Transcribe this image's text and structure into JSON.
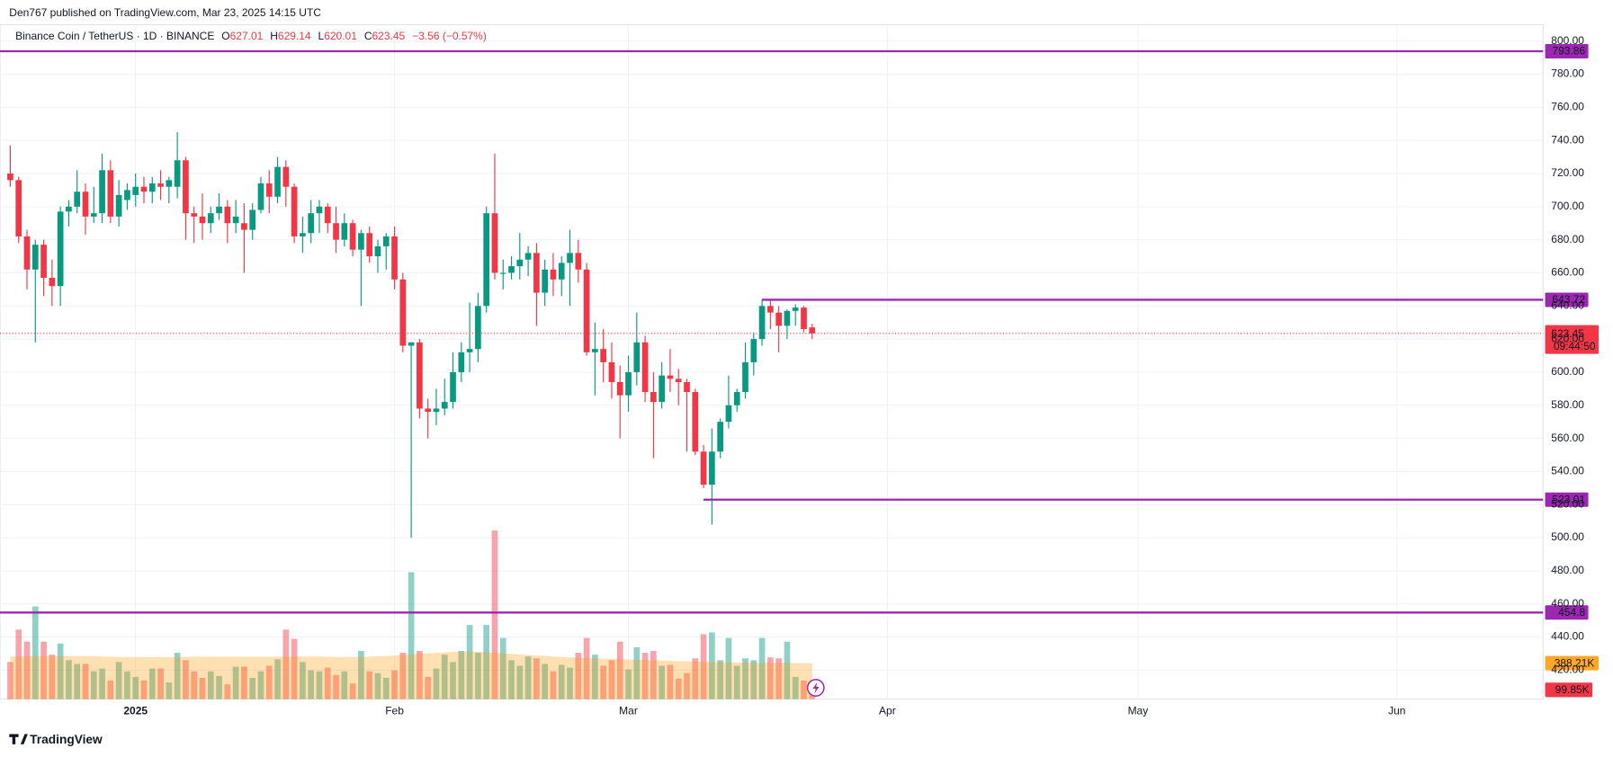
{
  "header": "Den767 published on TradingView.com, Mar 23, 2025 14:15 UTC",
  "footer": "TradingView",
  "chart_data": {
    "type": "candlestick",
    "symbol": "Binance Coin / TetherUS · 1D · BINANCE",
    "ohlc_labels": [
      "O",
      "H",
      "L",
      "C"
    ],
    "change": "−3.56 (−0.57%)",
    "up_color": "#089981",
    "down_color": "#f23645",
    "xlim": [
      -1.23,
      183.5
    ],
    "xticks": [
      {
        "value": 15,
        "label": "2025"
      },
      {
        "value": 46,
        "label": "Feb"
      },
      {
        "value": 74,
        "label": "Mar"
      },
      {
        "value": 105,
        "label": "Apr"
      },
      {
        "value": 135,
        "label": "May"
      },
      {
        "value": 166,
        "label": "Jun"
      }
    ],
    "ylim": [
      402.5,
      809.9
    ],
    "yticks": [
      {
        "value": 420,
        "label": "420.00"
      },
      {
        "value": 440,
        "label": "440.00"
      },
      {
        "value": 460,
        "label": "460.00"
      },
      {
        "value": 480,
        "label": "480.00"
      },
      {
        "value": 500,
        "label": "500.00"
      },
      {
        "value": 520,
        "label": "520.00"
      },
      {
        "value": 540,
        "label": "540.00"
      },
      {
        "value": 560,
        "label": "560.00"
      },
      {
        "value": 580,
        "label": "580.00"
      },
      {
        "value": 600,
        "label": "600.00"
      },
      {
        "value": 620,
        "label": "620.00"
      },
      {
        "value": 640,
        "label": "640.00"
      },
      {
        "value": 660,
        "label": "660.00"
      },
      {
        "value": 680,
        "label": "680.00"
      },
      {
        "value": 700,
        "label": "700.00"
      },
      {
        "value": 720,
        "label": "720.00"
      },
      {
        "value": 740,
        "label": "740.00"
      },
      {
        "value": 760,
        "label": "760.00"
      },
      {
        "value": 780,
        "label": "780.00"
      },
      {
        "value": 800,
        "label": "800.00"
      }
    ],
    "grid": true,
    "open": [
      720,
      716,
      682,
      662,
      677,
      657,
      652,
      697,
      700,
      709,
      694,
      696,
      722,
      694,
      704,
      707,
      712,
      709,
      714,
      712,
      712,
      728,
      696,
      694,
      690,
      696,
      700,
      690,
      690,
      686,
      698,
      714,
      706,
      724,
      712,
      682,
      684,
      696,
      700,
      690,
      680,
      690,
      674,
      684,
      670,
      676,
      682,
      656,
      616,
      618,
      578,
      576,
      578,
      582,
      600,
      612,
      614,
      640,
      696,
      660,
      660,
      664,
      668,
      672,
      648,
      662,
      656,
      666,
      672,
      662,
      612,
      614,
      606,
      594,
      586,
      600,
      618,
      588,
      582,
      598,
      596,
      594,
      588,
      552,
      532,
      552,
      570,
      580,
      588,
      606,
      620,
      640,
      636,
      628,
      637,
      639,
      627.01
    ],
    "high": [
      737,
      718,
      686,
      680,
      680,
      668,
      700,
      704,
      722,
      714,
      712,
      732,
      728,
      716,
      714,
      720,
      718,
      718,
      722,
      718,
      745,
      730,
      700,
      708,
      700,
      708,
      704,
      704,
      702,
      702,
      718,
      722,
      730,
      728,
      714,
      694,
      704,
      704,
      702,
      700,
      696,
      692,
      686,
      688,
      680,
      684,
      688,
      660,
      618,
      620,
      584,
      590,
      596,
      612,
      618,
      642,
      648,
      700,
      732,
      668,
      670,
      684,
      676,
      678,
      668,
      672,
      670,
      686,
      680,
      666,
      630,
      626,
      618,
      604,
      610,
      636,
      622,
      600,
      606,
      614,
      602,
      596,
      590,
      556,
      566,
      572,
      598,
      590,
      618,
      624,
      644,
      644,
      640,
      638,
      641,
      640,
      629.14
    ],
    "low": [
      712,
      678,
      650,
      618,
      646,
      640,
      640,
      688,
      696,
      683,
      690,
      690,
      690,
      688,
      698,
      700,
      702,
      702,
      704,
      702,
      705,
      680,
      678,
      680,
      684,
      692,
      678,
      684,
      660,
      680,
      696,
      696,
      702,
      700,
      678,
      672,
      678,
      684,
      684,
      672,
      676,
      670,
      640,
      666,
      660,
      662,
      650,
      612,
      500,
      572,
      560,
      568,
      574,
      578,
      594,
      600,
      606,
      636,
      656,
      650,
      656,
      656,
      658,
      628,
      640,
      646,
      646,
      640,
      654,
      610,
      586,
      594,
      584,
      560,
      576,
      592,
      582,
      548,
      578,
      588,
      580,
      552,
      550,
      530,
      508,
      548,
      566,
      576,
      584,
      598,
      616,
      626,
      612,
      620,
      628,
      624,
      620.01
    ],
    "close": [
      716,
      682,
      662,
      677,
      657,
      652,
      697,
      700,
      709,
      694,
      696,
      722,
      694,
      707,
      710,
      712,
      709,
      714,
      712,
      716,
      728,
      696,
      694,
      690,
      696,
      700,
      690,
      694,
      686,
      698,
      714,
      706,
      724,
      712,
      682,
      684,
      696,
      700,
      690,
      680,
      690,
      674,
      684,
      670,
      676,
      682,
      656,
      616,
      618,
      578,
      576,
      578,
      582,
      600,
      612,
      614,
      640,
      696,
      660,
      660,
      664,
      668,
      672,
      648,
      662,
      656,
      666,
      672,
      662,
      612,
      614,
      606,
      594,
      586,
      600,
      618,
      588,
      582,
      598,
      596,
      594,
      588,
      552,
      532,
      552,
      570,
      580,
      588,
      606,
      620,
      640,
      636,
      628,
      637,
      639,
      626,
      623.45
    ],
    "countdown": "09:44:50",
    "volume": {
      "values": [
        400,
        750,
        620,
        1000,
        620,
        480,
        600,
        420,
        380,
        380,
        300,
        330,
        200,
        400,
        300,
        240,
        200,
        330,
        330,
        180,
        500,
        420,
        300,
        230,
        300,
        250,
        160,
        350,
        350,
        230,
        300,
        360,
        430,
        750,
        650,
        400,
        310,
        300,
        340,
        260,
        300,
        170,
        520,
        300,
        280,
        230,
        310,
        500,
        1370,
        520,
        240,
        330,
        480,
        400,
        520,
        800,
        500,
        800,
        1820,
        660,
        420,
        360,
        460,
        440,
        380,
        300,
        370,
        340,
        500,
        660,
        480,
        360,
        420,
        620,
        320,
        560,
        500,
        520,
        360,
        370,
        220,
        280,
        440,
        700,
        720,
        420,
        660,
        360,
        440,
        420,
        660,
        450,
        440,
        620,
        240,
        200,
        99.85
      ],
      "value_labels": [
        null,
        null,
        null,
        null,
        null,
        null,
        null,
        null,
        null,
        null,
        null,
        null,
        null,
        null,
        null,
        null,
        null,
        null,
        null,
        null,
        null,
        null,
        null,
        null,
        null,
        null,
        null,
        null,
        null,
        null,
        null,
        null,
        null,
        null,
        null,
        null,
        null,
        null,
        null,
        null,
        null,
        null,
        null,
        null,
        null,
        null,
        null,
        null,
        null,
        null,
        null,
        null,
        null,
        null,
        null,
        null,
        null,
        null,
        null,
        null,
        null,
        null,
        null,
        null,
        null,
        null,
        null,
        null,
        null,
        null,
        null,
        null,
        null,
        null,
        null,
        null,
        null,
        null,
        null,
        null,
        null,
        null,
        null,
        null,
        null,
        null,
        null,
        null,
        null,
        null,
        null,
        null,
        null,
        null,
        null,
        null,
        "99.85K"
      ]
    },
    "volume_ma": {
      "color": "#ff9800",
      "values": [
        460,
        460,
        462,
        464,
        465,
        466,
        466,
        466,
        465,
        464,
        462,
        460,
        458,
        456,
        455,
        455,
        454,
        454,
        454,
        455,
        456,
        457,
        458,
        458,
        458,
        458,
        458,
        458,
        458,
        458,
        458,
        458,
        458,
        458,
        458,
        460,
        460,
        460,
        458,
        456,
        455,
        455,
        456,
        458,
        462,
        466,
        470,
        476,
        482,
        488,
        494,
        500,
        505,
        510,
        512,
        512,
        510,
        506,
        500,
        494,
        488,
        482,
        476,
        470,
        465,
        460,
        455,
        450,
        446,
        443,
        440,
        437,
        434,
        431,
        428,
        425,
        422,
        419,
        416,
        413,
        410,
        407,
        405,
        403,
        401,
        399,
        397,
        396,
        395,
        394,
        393,
        392,
        391,
        390,
        389,
        388.5,
        388.21
      ],
      "value_labels": [
        null,
        null,
        null,
        null,
        null,
        null,
        null,
        null,
        null,
        null,
        null,
        null,
        null,
        null,
        null,
        null,
        null,
        null,
        null,
        null,
        null,
        null,
        null,
        null,
        null,
        null,
        null,
        null,
        null,
        null,
        null,
        null,
        null,
        null,
        null,
        null,
        null,
        null,
        null,
        null,
        null,
        null,
        null,
        null,
        null,
        null,
        null,
        null,
        null,
        null,
        null,
        null,
        null,
        null,
        null,
        null,
        null,
        null,
        null,
        null,
        null,
        null,
        null,
        null,
        null,
        null,
        null,
        null,
        null,
        null,
        null,
        null,
        null,
        null,
        null,
        null,
        null,
        null,
        null,
        null,
        null,
        null,
        null,
        null,
        null,
        null,
        null,
        null,
        null,
        null,
        null,
        null,
        null,
        null,
        null,
        null,
        "388.21K"
      ]
    },
    "levels": [
      {
        "value": 793.86,
        "from": -1.23,
        "color": "#9c27b0"
      },
      {
        "value": 643.72,
        "from": 90,
        "color": "#9c27b0"
      },
      {
        "value": 523.01,
        "from": 83,
        "color": "#9c27b0"
      },
      {
        "value": 454.8,
        "from": -1.23,
        "color": "#9c27b0"
      }
    ]
  }
}
